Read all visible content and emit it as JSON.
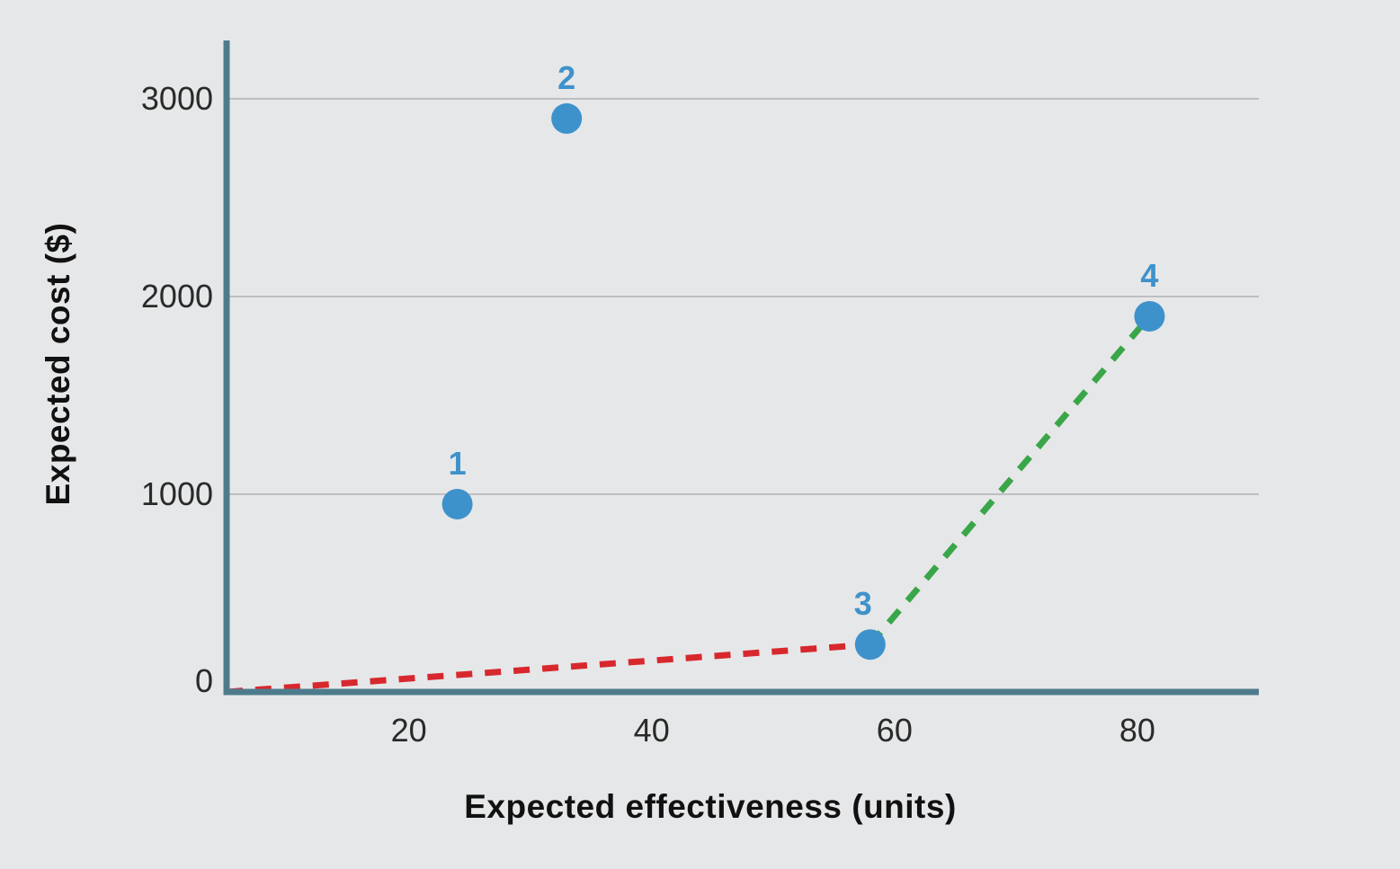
{
  "figure": {
    "background_color": "#e6e7e8"
  },
  "chart_data": {
    "type": "scatter",
    "title": "",
    "xlabel": "Expected effectiveness (units)",
    "ylabel": "Expected cost ($)",
    "xlim": [
      5,
      90
    ],
    "ylim": [
      0,
      3295
    ],
    "x_ticks": [
      "20",
      "40",
      "60",
      "80"
    ],
    "x_tick_values": [
      20,
      40,
      60,
      80
    ],
    "y_ticks": [
      "0",
      "1000",
      "2000",
      "3000"
    ],
    "y_tick_values": [
      0,
      1000,
      2000,
      3000
    ],
    "grid": "horizontal gridlines at 1000, 2000, 3000",
    "legend": "none",
    "points": [
      {
        "label": "1",
        "x": 24,
        "y": 950
      },
      {
        "label": "2",
        "x": 33,
        "y": 2900
      },
      {
        "label": "3",
        "x": 58,
        "y": 240
      },
      {
        "label": "4",
        "x": 81,
        "y": 1900
      }
    ],
    "lines": [
      {
        "name": "dominated-path-segment",
        "style": "dashed",
        "color": "#d7282e",
        "points": [
          [
            5,
            0
          ],
          [
            58,
            240
          ]
        ]
      },
      {
        "name": "frontier-segment",
        "style": "dashed",
        "color": "#3aa64a",
        "points": [
          [
            58,
            240
          ],
          [
            81,
            1900
          ]
        ]
      }
    ],
    "colors": {
      "point": "#3e92cc",
      "point_label": "#3e92cc",
      "axis": "#4e7b8c",
      "gridline": "#b3b5b7",
      "tick_label": "#2a2a2a",
      "axis_title": "#111111",
      "background": "#e6e7e8"
    }
  }
}
